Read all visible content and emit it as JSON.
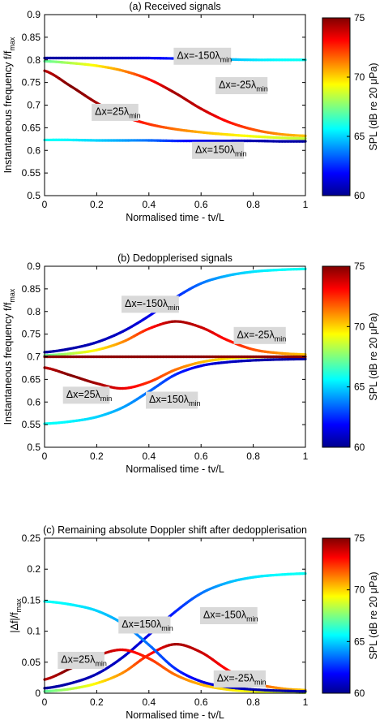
{
  "colorbar": {
    "label": "SPL (dB re 20 μPa)",
    "min": 60,
    "max": 75,
    "ticks": [
      "60",
      "65",
      "70",
      "75"
    ],
    "colormap": "jet"
  },
  "chart_data": [
    {
      "type": "line",
      "title": "(a) Received signals",
      "xlabel": "Normalised time - tv/L",
      "ylabel": "Instantaneous frequency f/f",
      "ylabel_sub": "max",
      "xlim": [
        0,
        1
      ],
      "ylim": [
        0.5,
        0.9
      ],
      "xticks": [
        "0",
        "0.2",
        "0.4",
        "0.6",
        "0.8",
        "1"
      ],
      "yticks": [
        "0.5",
        "0.55",
        "0.6",
        "0.65",
        "0.7",
        "0.75",
        "0.8",
        "0.85",
        "0.9"
      ],
      "grid": false,
      "color_by": "SPL (dB re 20 μPa)",
      "series": [
        {
          "name": "Δx=-150λmin",
          "x": [
            0,
            0.1,
            0.2,
            0.3,
            0.4,
            0.5,
            0.6,
            0.7,
            0.8,
            0.9,
            1.0
          ],
          "y": [
            0.804,
            0.804,
            0.804,
            0.804,
            0.804,
            0.803,
            0.802,
            0.801,
            0.8,
            0.8,
            0.8
          ],
          "spl": [
            60.5,
            60.6,
            60.8,
            61.0,
            61.5,
            62.3,
            63.5,
            64.5,
            65.2,
            65.6,
            65.8
          ]
        },
        {
          "name": "Δx=-25λmin",
          "x": [
            0,
            0.1,
            0.2,
            0.3,
            0.4,
            0.5,
            0.6,
            0.7,
            0.8,
            0.9,
            1.0
          ],
          "y": [
            0.797,
            0.793,
            0.787,
            0.776,
            0.757,
            0.727,
            0.692,
            0.664,
            0.646,
            0.636,
            0.632
          ],
          "spl": [
            67.0,
            68.2,
            69.5,
            71.0,
            72.8,
            74.5,
            74.0,
            73.0,
            72.0,
            71.0,
            70.2
          ]
        },
        {
          "name": "Δx=25λmin",
          "x": [
            0,
            0.1,
            0.2,
            0.3,
            0.4,
            0.5,
            0.6,
            0.7,
            0.8,
            0.9,
            1.0
          ],
          "y": [
            0.776,
            0.742,
            0.705,
            0.676,
            0.658,
            0.647,
            0.64,
            0.635,
            0.631,
            0.628,
            0.626
          ],
          "spl": [
            74.0,
            75.0,
            74.5,
            73.5,
            72.5,
            71.5,
            70.5,
            69.8,
            69.2,
            68.8,
            68.5
          ]
        },
        {
          "name": "Δx=150λmin",
          "x": [
            0,
            0.1,
            0.2,
            0.3,
            0.4,
            0.5,
            0.6,
            0.7,
            0.8,
            0.9,
            1.0
          ],
          "y": [
            0.623,
            0.623,
            0.622,
            0.622,
            0.622,
            0.621,
            0.621,
            0.621,
            0.621,
            0.62,
            0.62
          ],
          "spl": [
            65.8,
            65.5,
            65.0,
            64.3,
            63.5,
            62.5,
            61.5,
            61.0,
            60.7,
            60.6,
            60.5
          ]
        }
      ],
      "annotations": [
        {
          "text": "Δx=-150λ",
          "sub": "min",
          "x": 0.605,
          "y": 0.808
        },
        {
          "text": "Δx=-25λ",
          "sub": "min",
          "x": 0.755,
          "y": 0.743
        },
        {
          "text": "Δx=25λ",
          "sub": "min",
          "x": 0.27,
          "y": 0.684
        },
        {
          "text": "Δx=150λ",
          "sub": "min",
          "x": 0.665,
          "y": 0.6
        }
      ]
    },
    {
      "type": "line",
      "title": "(b) Dedopplerised signals",
      "xlabel": "Normalised time - tv/L",
      "ylabel": "Instantaneous frequency f/f",
      "ylabel_sub": "max",
      "xlim": [
        0,
        1
      ],
      "ylim": [
        0.5,
        0.9
      ],
      "xticks": [
        "0",
        "0.2",
        "0.4",
        "0.6",
        "0.8",
        "1"
      ],
      "yticks": [
        "0.5",
        "0.55",
        "0.6",
        "0.65",
        "0.7",
        "0.75",
        "0.8",
        "0.85",
        "0.9"
      ],
      "grid": false,
      "color_by": "SPL (dB re 20 μPa)",
      "series": [
        {
          "name": "Δx=-150λmin",
          "x": [
            0,
            0.1,
            0.2,
            0.3,
            0.4,
            0.5,
            0.6,
            0.7,
            0.8,
            0.9,
            1.0
          ],
          "y": [
            0.71,
            0.718,
            0.732,
            0.756,
            0.79,
            0.83,
            0.862,
            0.879,
            0.888,
            0.892,
            0.894
          ],
          "spl": [
            60.5,
            60.6,
            60.8,
            61.0,
            61.5,
            62.3,
            63.5,
            64.5,
            65.2,
            65.6,
            65.8
          ]
        },
        {
          "name": "Δx=-25λmin",
          "x": [
            0,
            0.1,
            0.2,
            0.3,
            0.4,
            0.5,
            0.6,
            0.7,
            0.8,
            0.9,
            1.0
          ],
          "y": [
            0.703,
            0.707,
            0.715,
            0.733,
            0.762,
            0.778,
            0.765,
            0.737,
            0.716,
            0.708,
            0.705
          ],
          "spl": [
            67.0,
            68.2,
            69.5,
            71.0,
            72.8,
            74.5,
            74.0,
            73.0,
            72.0,
            71.0,
            70.2
          ]
        },
        {
          "name": "Δx=25λmin",
          "x": [
            0,
            0.1,
            0.2,
            0.3,
            0.4,
            0.5,
            0.6,
            0.7,
            0.8,
            0.9,
            1.0
          ],
          "y": [
            0.676,
            0.659,
            0.641,
            0.63,
            0.644,
            0.671,
            0.688,
            0.696,
            0.699,
            0.7,
            0.7
          ],
          "spl": [
            74.0,
            75.0,
            74.5,
            73.5,
            72.5,
            71.5,
            70.5,
            69.8,
            69.2,
            68.8,
            68.5
          ]
        },
        {
          "name": "Δx=150λmin",
          "x": [
            0,
            0.1,
            0.2,
            0.3,
            0.4,
            0.5,
            0.6,
            0.7,
            0.8,
            0.9,
            1.0
          ],
          "y": [
            0.552,
            0.557,
            0.567,
            0.588,
            0.623,
            0.66,
            0.68,
            0.688,
            0.692,
            0.694,
            0.695
          ],
          "spl": [
            65.8,
            65.5,
            65.0,
            64.3,
            63.5,
            62.5,
            61.5,
            61.0,
            60.7,
            60.6,
            60.5
          ]
        },
        {
          "name": "",
          "x": [
            0,
            0.1,
            0.2,
            0.3,
            0.4,
            0.5,
            0.6,
            0.7,
            0.8,
            0.9,
            1.0
          ],
          "y": [
            0.7,
            0.7,
            0.7,
            0.7,
            0.7,
            0.7,
            0.7,
            0.7,
            0.7,
            0.7,
            0.7
          ],
          "spl": [
            74.8,
            74.8,
            74.8,
            74.8,
            74.8,
            74.8,
            74.8,
            74.8,
            74.8,
            74.8,
            74.8
          ]
        }
      ],
      "annotations": [
        {
          "text": "Δx=-150λ",
          "sub": "min",
          "x": 0.405,
          "y": 0.816
        },
        {
          "text": "Δx=-25λ",
          "sub": "min",
          "x": 0.825,
          "y": 0.747
        },
        {
          "text": "Δx=25λ",
          "sub": "min",
          "x": 0.16,
          "y": 0.615
        },
        {
          "text": "Δx=150λ",
          "sub": "min",
          "x": 0.488,
          "y": 0.604
        }
      ]
    },
    {
      "type": "line",
      "title": "(c) Remaining absolute Doppler shift after dedopplerisation",
      "xlabel": "Normalised time - tv/L",
      "ylabel": "|Δf|/f",
      "ylabel_sub": "max",
      "xlim": [
        0,
        1
      ],
      "ylim": [
        0,
        0.25
      ],
      "xticks": [
        "0",
        "0.2",
        "0.4",
        "0.6",
        "0.8",
        "1"
      ],
      "yticks": [
        "0",
        "0.05",
        "0.1",
        "0.15",
        "0.2",
        "0.25"
      ],
      "grid": false,
      "color_by": "SPL (dB re 20 μPa)",
      "series": [
        {
          "name": "Δx=-150λmin",
          "x": [
            0,
            0.1,
            0.2,
            0.3,
            0.4,
            0.5,
            0.6,
            0.7,
            0.8,
            0.9,
            1.0
          ],
          "y": [
            0.008,
            0.016,
            0.031,
            0.058,
            0.094,
            0.131,
            0.161,
            0.178,
            0.187,
            0.191,
            0.193
          ],
          "spl": [
            60.5,
            60.6,
            60.8,
            61.0,
            61.5,
            62.3,
            63.5,
            64.5,
            65.2,
            65.6,
            65.8
          ]
        },
        {
          "name": "Δx=-25λmin",
          "x": [
            0,
            0.1,
            0.2,
            0.3,
            0.4,
            0.5,
            0.6,
            0.7,
            0.8,
            0.9,
            1.0
          ],
          "y": [
            0.003,
            0.007,
            0.016,
            0.033,
            0.062,
            0.079,
            0.066,
            0.038,
            0.017,
            0.008,
            0.005
          ],
          "spl": [
            67.0,
            68.2,
            69.5,
            71.0,
            72.8,
            74.5,
            74.0,
            73.0,
            72.0,
            71.0,
            70.2
          ]
        },
        {
          "name": "Δx=25λmin",
          "x": [
            0,
            0.1,
            0.2,
            0.3,
            0.4,
            0.5,
            0.6,
            0.7,
            0.8,
            0.9,
            1.0
          ],
          "y": [
            0.022,
            0.04,
            0.06,
            0.07,
            0.056,
            0.03,
            0.014,
            0.006,
            0.003,
            0.002,
            0.001
          ],
          "spl": [
            74.0,
            75.0,
            74.5,
            73.5,
            72.5,
            71.5,
            70.5,
            69.8,
            69.2,
            68.8,
            68.5
          ]
        },
        {
          "name": "Δx=150λmin",
          "x": [
            0,
            0.1,
            0.2,
            0.3,
            0.4,
            0.5,
            0.6,
            0.7,
            0.8,
            0.9,
            1.0
          ],
          "y": [
            0.148,
            0.143,
            0.133,
            0.112,
            0.078,
            0.04,
            0.019,
            0.01,
            0.006,
            0.004,
            0.003
          ],
          "spl": [
            65.8,
            65.5,
            65.0,
            64.3,
            63.5,
            62.5,
            61.5,
            61.0,
            60.7,
            60.6,
            60.5
          ]
        }
      ],
      "annotations": [
        {
          "text": "Δx=150λ",
          "sub": "min",
          "x": 0.383,
          "y": 0.11
        },
        {
          "text": "Δx=-150λ",
          "sub": "min",
          "x": 0.706,
          "y": 0.125
        },
        {
          "text": "Δx=25λ",
          "sub": "min",
          "x": 0.14,
          "y": 0.053
        },
        {
          "text": "Δx=-25λ",
          "sub": "min",
          "x": 0.748,
          "y": 0.023
        }
      ]
    }
  ]
}
